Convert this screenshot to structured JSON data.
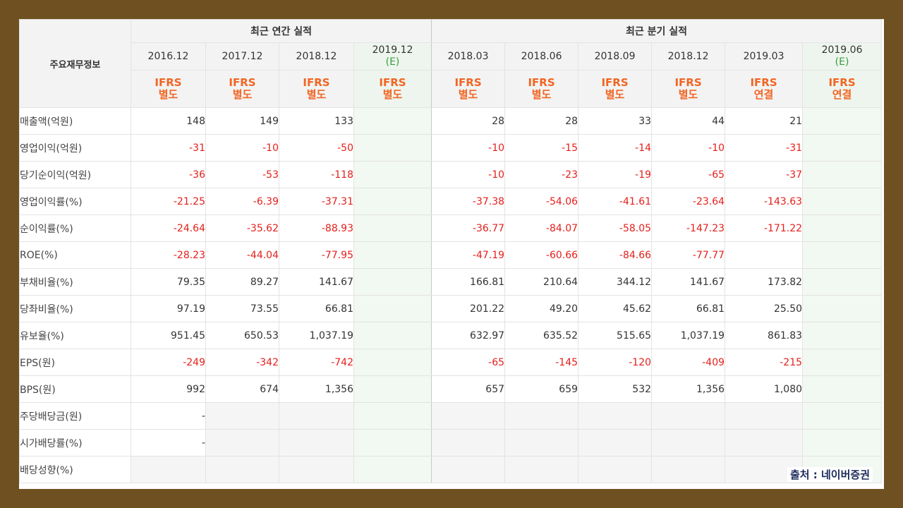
{
  "table": {
    "corner_label": "주요재무정보",
    "annual_group": "최근 연간 실적",
    "quarter_group": "최근 분기 실적",
    "periods": [
      {
        "date": "2016.12",
        "est": "",
        "std1": "IFRS",
        "std2": "별도"
      },
      {
        "date": "2017.12",
        "est": "",
        "std1": "IFRS",
        "std2": "별도"
      },
      {
        "date": "2018.12",
        "est": "",
        "std1": "IFRS",
        "std2": "별도"
      },
      {
        "date": "2019.12",
        "est": "(E)",
        "std1": "IFRS",
        "std2": "별도"
      },
      {
        "date": "2018.03",
        "est": "",
        "std1": "IFRS",
        "std2": "별도"
      },
      {
        "date": "2018.06",
        "est": "",
        "std1": "IFRS",
        "std2": "별도"
      },
      {
        "date": "2018.09",
        "est": "",
        "std1": "IFRS",
        "std2": "별도"
      },
      {
        "date": "2018.12",
        "est": "",
        "std1": "IFRS",
        "std2": "별도"
      },
      {
        "date": "2019.03",
        "est": "",
        "std1": "IFRS",
        "std2": "연결"
      },
      {
        "date": "2019.06",
        "est": "(E)",
        "std1": "IFRS",
        "std2": "연결"
      }
    ],
    "rows": [
      {
        "label": "매출액(억원)",
        "values": [
          "148",
          "149",
          "133",
          "",
          "28",
          "28",
          "33",
          "44",
          "21",
          ""
        ]
      },
      {
        "label": "영업이익(억원)",
        "values": [
          "-31",
          "-10",
          "-50",
          "",
          "-10",
          "-15",
          "-14",
          "-10",
          "-31",
          ""
        ]
      },
      {
        "label": "당기순이익(억원)",
        "values": [
          "-36",
          "-53",
          "-118",
          "",
          "-10",
          "-23",
          "-19",
          "-65",
          "-37",
          ""
        ]
      },
      {
        "label": "영업이익률(%)",
        "values": [
          "-21.25",
          "-6.39",
          "-37.31",
          "",
          "-37.38",
          "-54.06",
          "-41.61",
          "-23.64",
          "-143.63",
          ""
        ]
      },
      {
        "label": "순이익률(%)",
        "values": [
          "-24.64",
          "-35.62",
          "-88.93",
          "",
          "-36.77",
          "-84.07",
          "-58.05",
          "-147.23",
          "-171.22",
          ""
        ]
      },
      {
        "label": "ROE(%)",
        "values": [
          "-28.23",
          "-44.04",
          "-77.95",
          "",
          "-47.19",
          "-60.66",
          "-84.66",
          "-77.77",
          "",
          ""
        ]
      },
      {
        "label": "부채비율(%)",
        "values": [
          "79.35",
          "89.27",
          "141.67",
          "",
          "166.81",
          "210.64",
          "344.12",
          "141.67",
          "173.82",
          ""
        ]
      },
      {
        "label": "당좌비율(%)",
        "values": [
          "97.19",
          "73.55",
          "66.81",
          "",
          "201.22",
          "49.20",
          "45.62",
          "66.81",
          "25.50",
          ""
        ]
      },
      {
        "label": "유보율(%)",
        "values": [
          "951.45",
          "650.53",
          "1,037.19",
          "",
          "632.97",
          "635.52",
          "515.65",
          "1,037.19",
          "861.83",
          ""
        ]
      },
      {
        "label": "EPS(원)",
        "values": [
          "-249",
          "-342",
          "-742",
          "",
          "-65",
          "-145",
          "-120",
          "-409",
          "-215",
          ""
        ]
      },
      {
        "label": "BPS(원)",
        "values": [
          "992",
          "674",
          "1,356",
          "",
          "657",
          "659",
          "532",
          "1,356",
          "1,080",
          ""
        ]
      },
      {
        "label": "주당배당금(원)",
        "values": [
          "-",
          "",
          "",
          "",
          "",
          "",
          "",
          "",
          "",
          ""
        ]
      },
      {
        "label": "시가배당률(%)",
        "values": [
          "-",
          "",
          "",
          "",
          "",
          "",
          "",
          "",
          "",
          ""
        ]
      },
      {
        "label": "배당성향(%)",
        "values": [
          "",
          "",
          "",
          "",
          "",
          "",
          "",
          "",
          "",
          ""
        ]
      }
    ]
  },
  "source": "출처 : 네이버증권",
  "colors": {
    "frame": "#6f5121",
    "negative": "#e4201c",
    "standard": "#f26522",
    "estimate": "#3a9d3a"
  }
}
